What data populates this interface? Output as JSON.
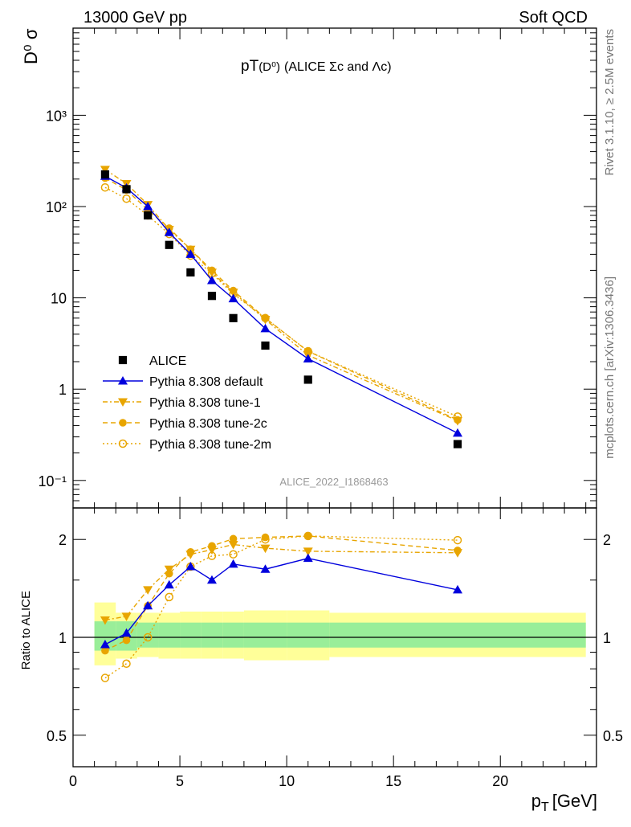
{
  "header": {
    "left": "13000 GeV pp",
    "right": "Soft QCD"
  },
  "side_labels": {
    "rivet": "Rivet 3.1.10, ≥ 2.5M events",
    "mcplots": "mcplots.cern.ch [arXiv:1306.3436]"
  },
  "chart_data": {
    "type": "scatter",
    "title_main": "pT",
    "title_sub": "(D⁰)",
    "title_rest": "(ALICE Σc and Λc)",
    "analysis_id": "ALICE_2022_I1868463",
    "xlabel": "p_T [GeV]",
    "ylabel_top": "D⁰ σ",
    "ylabel_bottom": "Ratio to ALICE",
    "xlim": [
      0,
      24.5
    ],
    "ylim_top": [
      0.05,
      9000
    ],
    "ylim_bottom": [
      0.4,
      2.5
    ],
    "log_y": true,
    "x_ticks": [
      0,
      5,
      10,
      15,
      20
    ],
    "x_tick_labels": [
      "0",
      "5",
      "10",
      "15",
      "20"
    ],
    "y_ticks_top": [
      0.1,
      1,
      10,
      100,
      1000
    ],
    "y_tick_labels_top": [
      "10⁻¹",
      "1",
      "10",
      "10²",
      "10³"
    ],
    "y_ticks_bottom": [
      0.5,
      1,
      2
    ],
    "y_tick_labels_bottom": [
      "0.5",
      "1",
      "2"
    ],
    "x": [
      1.5,
      2.5,
      3.5,
      4.5,
      5.5,
      6.5,
      7.5,
      9,
      11,
      18
    ],
    "bin_edges": [
      1,
      2,
      3,
      4,
      5,
      6,
      7,
      8,
      10,
      12,
      24
    ],
    "legend_position": "lower-left",
    "data": {
      "name": "ALICE",
      "values": [
        225,
        155,
        80,
        38,
        19,
        10.5,
        6.0,
        3.0,
        1.27,
        0.25
      ],
      "color": "#000000",
      "band_inner": [
        [
          0.91,
          1.12
        ],
        [
          0.91,
          1.12
        ],
        [
          0.93,
          1.11
        ],
        [
          0.93,
          1.11
        ],
        [
          0.93,
          1.11
        ],
        [
          0.93,
          1.11
        ],
        [
          0.93,
          1.11
        ],
        [
          0.93,
          1.11
        ],
        [
          0.93,
          1.11
        ],
        [
          0.93,
          1.11
        ]
      ],
      "band_outer": [
        [
          0.82,
          1.28
        ],
        [
          0.86,
          1.19
        ],
        [
          0.87,
          1.19
        ],
        [
          0.86,
          1.19
        ],
        [
          0.86,
          1.2
        ],
        [
          0.86,
          1.2
        ],
        [
          0.86,
          1.2
        ],
        [
          0.85,
          1.21
        ],
        [
          0.85,
          1.21
        ],
        [
          0.87,
          1.19
        ]
      ]
    },
    "series": [
      {
        "name": "Pythia 8.308 default",
        "color": "#0000dd",
        "marker": "triangle-up",
        "dash": "",
        "values": [
          215,
          160,
          100,
          52,
          30,
          15.5,
          9.8,
          4.6,
          2.15,
          0.33
        ],
        "ratio": [
          0.95,
          1.03,
          1.25,
          1.45,
          1.65,
          1.5,
          1.68,
          1.62,
          1.75,
          1.4
        ]
      },
      {
        "name": "Pythia 8.308 tune-1",
        "color": "#e8a500",
        "marker": "triangle-down",
        "dash": "6,3,2,3",
        "values": [
          255,
          178,
          105,
          56,
          34,
          19,
          11.5,
          5.8,
          2.35,
          0.45
        ],
        "ratio": [
          1.13,
          1.16,
          1.4,
          1.62,
          1.8,
          1.86,
          1.93,
          1.88,
          1.84,
          1.82
        ]
      },
      {
        "name": "Pythia 8.308 tune-2c",
        "color": "#e8a500",
        "marker": "circle",
        "dash": "6,4",
        "values": [
          205,
          152,
          92,
          58,
          34,
          20,
          12.0,
          6.0,
          2.6,
          0.46
        ],
        "ratio": [
          0.91,
          0.98,
          1.25,
          1.57,
          1.83,
          1.91,
          2.01,
          2.03,
          2.05,
          1.85
        ]
      },
      {
        "name": "Pythia 8.308 tune-2m",
        "color": "#e8a500",
        "marker": "circle-open",
        "dash": "2,3",
        "values": [
          162,
          122,
          80,
          50,
          29,
          18.5,
          11.0,
          6.0,
          2.6,
          0.5
        ],
        "ratio": [
          0.75,
          0.83,
          1.0,
          1.33,
          1.65,
          1.78,
          1.8,
          2.0,
          2.05,
          1.99
        ]
      }
    ]
  }
}
